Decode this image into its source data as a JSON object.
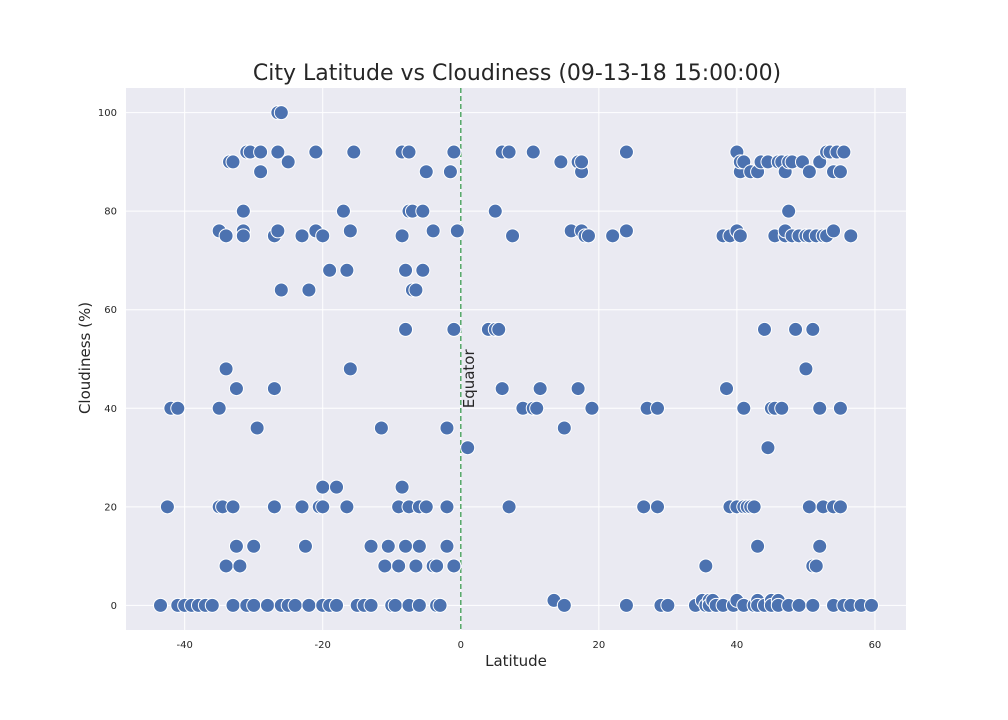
{
  "chart_data": {
    "type": "scatter",
    "title": "City Latitude vs Cloudiness (09-13-18 15:00:00)",
    "xlabel": "Latitude",
    "ylabel": "Cloudiness (%)",
    "xlim": [
      -48.5,
      64.5
    ],
    "ylim": [
      -5,
      105
    ],
    "xticks": [
      -40,
      -20,
      0,
      20,
      40,
      60
    ],
    "yticks": [
      0,
      20,
      40,
      60,
      80,
      100
    ],
    "grid": true,
    "colors": {
      "background": "#eaeaf2",
      "grid": "#ffffff",
      "marker": "#4c72b0",
      "marker_edge": "#ffffff",
      "equator_line": "#55a868"
    },
    "annotation": {
      "text": "Equator",
      "x": 0,
      "y": 40,
      "rotation": 90,
      "linestyle": "dashed"
    },
    "points": [
      [
        -43.5,
        0
      ],
      [
        -42.5,
        20
      ],
      [
        -42,
        40
      ],
      [
        -41,
        40
      ],
      [
        -41,
        0
      ],
      [
        -40,
        0
      ],
      [
        -39,
        0
      ],
      [
        -38,
        0
      ],
      [
        -37,
        0
      ],
      [
        -36,
        0
      ],
      [
        -35,
        76
      ],
      [
        -35,
        40
      ],
      [
        -35,
        20
      ],
      [
        -34.5,
        20
      ],
      [
        -34,
        8
      ],
      [
        -34,
        75
      ],
      [
        -34,
        48
      ],
      [
        -33.5,
        90
      ],
      [
        -33,
        90
      ],
      [
        -33,
        20
      ],
      [
        -33,
        0
      ],
      [
        -32.5,
        44
      ],
      [
        -32.5,
        12
      ],
      [
        -32,
        8
      ],
      [
        -31.5,
        80
      ],
      [
        -31.5,
        76
      ],
      [
        -31.5,
        75
      ],
      [
        -31,
        92
      ],
      [
        -31,
        0
      ],
      [
        -30.5,
        92
      ],
      [
        -30,
        12
      ],
      [
        -30,
        0
      ],
      [
        -29.5,
        36
      ],
      [
        -29,
        88
      ],
      [
        -29,
        92
      ],
      [
        -28,
        0
      ],
      [
        -27,
        44
      ],
      [
        -27,
        20
      ],
      [
        -27,
        75
      ],
      [
        -26.5,
        76
      ],
      [
        -26.5,
        92
      ],
      [
        -26.5,
        100
      ],
      [
        -26,
        100
      ],
      [
        -26,
        64
      ],
      [
        -26,
        0
      ],
      [
        -25,
        90
      ],
      [
        -25,
        0
      ],
      [
        -24,
        0
      ],
      [
        -23,
        75
      ],
      [
        -23,
        20
      ],
      [
        -22.5,
        12
      ],
      [
        -22,
        64
      ],
      [
        -22,
        0
      ],
      [
        -21,
        92
      ],
      [
        -21,
        76
      ],
      [
        -20.5,
        20
      ],
      [
        -20,
        20
      ],
      [
        -20,
        24
      ],
      [
        -20,
        75
      ],
      [
        -20,
        0
      ],
      [
        -19,
        0
      ],
      [
        -19,
        68
      ],
      [
        -18,
        24
      ],
      [
        -18,
        0
      ],
      [
        -17,
        80
      ],
      [
        -16.5,
        68
      ],
      [
        -16.5,
        20
      ],
      [
        -16,
        48
      ],
      [
        -16,
        76
      ],
      [
        -15.5,
        92
      ],
      [
        -15,
        0
      ],
      [
        -14,
        0
      ],
      [
        -13,
        0
      ],
      [
        -13,
        12
      ],
      [
        -11.5,
        36
      ],
      [
        -11,
        8
      ],
      [
        -10.5,
        12
      ],
      [
        -10,
        0
      ],
      [
        -9.5,
        0
      ],
      [
        -9,
        20
      ],
      [
        -9,
        8
      ],
      [
        -8.5,
        24
      ],
      [
        -8.5,
        75
      ],
      [
        -8.5,
        92
      ],
      [
        -8,
        56
      ],
      [
        -8,
        68
      ],
      [
        -8,
        12
      ],
      [
        -7.5,
        0
      ],
      [
        -7.5,
        20
      ],
      [
        -7.5,
        92
      ],
      [
        -7.5,
        80
      ],
      [
        -7,
        64
      ],
      [
        -7,
        80
      ],
      [
        -6.5,
        8
      ],
      [
        -6.5,
        64
      ],
      [
        -6,
        12
      ],
      [
        -6,
        20
      ],
      [
        -6,
        0
      ],
      [
        -5.5,
        80
      ],
      [
        -5.5,
        68
      ],
      [
        -5,
        88
      ],
      [
        -5,
        20
      ],
      [
        -4,
        76
      ],
      [
        -4,
        8
      ],
      [
        -3.5,
        8
      ],
      [
        -3.5,
        0
      ],
      [
        -3,
        0
      ],
      [
        -2,
        36
      ],
      [
        -2,
        12
      ],
      [
        -2,
        20
      ],
      [
        -1.5,
        88
      ],
      [
        -1,
        56
      ],
      [
        -1,
        92
      ],
      [
        -1,
        8
      ],
      [
        -0.5,
        76
      ],
      [
        1,
        32
      ],
      [
        4,
        56
      ],
      [
        5,
        56
      ],
      [
        5,
        80
      ],
      [
        5.5,
        56
      ],
      [
        6,
        92
      ],
      [
        6,
        44
      ],
      [
        7,
        20
      ],
      [
        7,
        92
      ],
      [
        7.5,
        75
      ],
      [
        9,
        40
      ],
      [
        10.5,
        40
      ],
      [
        10.5,
        92
      ],
      [
        11,
        40
      ],
      [
        11.5,
        44
      ],
      [
        13.5,
        1
      ],
      [
        14.5,
        90
      ],
      [
        15,
        0
      ],
      [
        15,
        36
      ],
      [
        16,
        76
      ],
      [
        17,
        90
      ],
      [
        17,
        44
      ],
      [
        17.5,
        88
      ],
      [
        17.5,
        90
      ],
      [
        17.5,
        76
      ],
      [
        18,
        75
      ],
      [
        18.5,
        75
      ],
      [
        19,
        40
      ],
      [
        22,
        75
      ],
      [
        24,
        76
      ],
      [
        24,
        0
      ],
      [
        24,
        92
      ],
      [
        26.5,
        20
      ],
      [
        27,
        40
      ],
      [
        28.5,
        40
      ],
      [
        28.5,
        20
      ],
      [
        29,
        0
      ],
      [
        30,
        0
      ],
      [
        34,
        0
      ],
      [
        35,
        1
      ],
      [
        35.5,
        0
      ],
      [
        35.5,
        8
      ],
      [
        36,
        1
      ],
      [
        36,
        0
      ],
      [
        36.5,
        1
      ],
      [
        37,
        0
      ],
      [
        38,
        75
      ],
      [
        38,
        0
      ],
      [
        38.5,
        44
      ],
      [
        39,
        75
      ],
      [
        39,
        20
      ],
      [
        39.5,
        0
      ],
      [
        40,
        1
      ],
      [
        40,
        76
      ],
      [
        40,
        92
      ],
      [
        40,
        20
      ],
      [
        40.5,
        75
      ],
      [
        40.5,
        88
      ],
      [
        40.5,
        90
      ],
      [
        41,
        0
      ],
      [
        41,
        40
      ],
      [
        41,
        90
      ],
      [
        41,
        20
      ],
      [
        41.5,
        20
      ],
      [
        42,
        88
      ],
      [
        42,
        20
      ],
      [
        42.5,
        0
      ],
      [
        42.5,
        20
      ],
      [
        43,
        88
      ],
      [
        43,
        12
      ],
      [
        43,
        1
      ],
      [
        43,
        0
      ],
      [
        43.5,
        90
      ],
      [
        44,
        56
      ],
      [
        44,
        0
      ],
      [
        44.5,
        32
      ],
      [
        44.5,
        90
      ],
      [
        45,
        1
      ],
      [
        45,
        40
      ],
      [
        45,
        0
      ],
      [
        45.5,
        40
      ],
      [
        45.5,
        75
      ],
      [
        46,
        90
      ],
      [
        46,
        1
      ],
      [
        46,
        0
      ],
      [
        46.5,
        40
      ],
      [
        46.5,
        90
      ],
      [
        47,
        88
      ],
      [
        47,
        75
      ],
      [
        47,
        76
      ],
      [
        47.5,
        80
      ],
      [
        47.5,
        90
      ],
      [
        47.5,
        0
      ],
      [
        48,
        75
      ],
      [
        48,
        90
      ],
      [
        48.5,
        56
      ],
      [
        49,
        75
      ],
      [
        49,
        0
      ],
      [
        49.5,
        90
      ],
      [
        50,
        48
      ],
      [
        50,
        75
      ],
      [
        50,
        75
      ],
      [
        50.5,
        88
      ],
      [
        50.5,
        75
      ],
      [
        50.5,
        20
      ],
      [
        51,
        56
      ],
      [
        51,
        8
      ],
      [
        51,
        0
      ],
      [
        51.5,
        75
      ],
      [
        51.5,
        8
      ],
      [
        52,
        90
      ],
      [
        52,
        40
      ],
      [
        52,
        12
      ],
      [
        52.5,
        75
      ],
      [
        52.5,
        20
      ],
      [
        53,
        92
      ],
      [
        53,
        75
      ],
      [
        53.5,
        92
      ],
      [
        54,
        88
      ],
      [
        54,
        20
      ],
      [
        54,
        0
      ],
      [
        54,
        76
      ],
      [
        54,
        0
      ],
      [
        54.5,
        92
      ],
      [
        55,
        88
      ],
      [
        55,
        40
      ],
      [
        55,
        20
      ],
      [
        55.5,
        92
      ],
      [
        55.5,
        0
      ],
      [
        56.5,
        75
      ],
      [
        56.5,
        0
      ],
      [
        58,
        0
      ],
      [
        59.5,
        0
      ]
    ]
  }
}
